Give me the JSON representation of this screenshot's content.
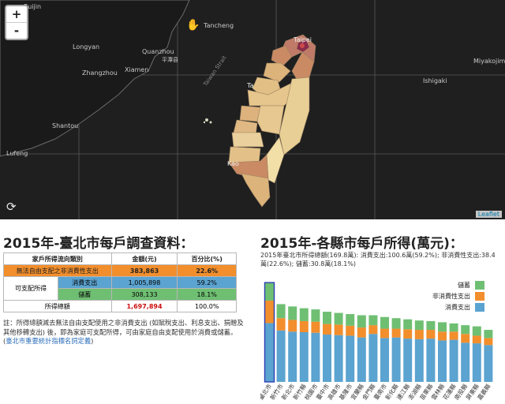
{
  "map": {
    "labels": {
      "ruijin": "Ruijin",
      "longyan": "Longyan",
      "quanzhou": "Quanzhou",
      "tancheng": "Tancheng",
      "pingtan": "平潭县",
      "xiamen": "Xiamen",
      "zhangzhou": "Zhangzhou",
      "shantou": "Shantou",
      "lufeng": "Lufeng",
      "taiwan_strait": "Taiwan Strait",
      "taipei": "Taipei",
      "taichung": "Ta",
      "kaohsiung": "Kao",
      "miyakojima": "Miyakojima",
      "ishigaki": "Ishigaki"
    },
    "zoom_in": "+",
    "zoom_out": "-",
    "attribution": "Leaflet",
    "colors": {
      "light": "#f2dfa8",
      "mid": "#dcb37a",
      "dark": "#c98a64",
      "taipei": "#8b2a4a"
    }
  },
  "left": {
    "title": "2015年-臺北市每戶調查資料：",
    "table": {
      "headers": [
        "家戶所得流向類別",
        "金額(元)",
        "百分比(%)"
      ],
      "row_nonconsume": {
        "label": "無法自由支配之非消費性支出",
        "amount": "383,863",
        "pct": "22.6%"
      },
      "disposable_label": "可支配所得",
      "row_consume": {
        "label": "消費支出",
        "amount": "1,005,898",
        "pct": "59.2%"
      },
      "row_saving": {
        "label": "儲蓄",
        "amount": "308,133",
        "pct": "18.1%"
      },
      "row_total": {
        "label": "所得總額",
        "amount": "1,697,894",
        "pct": "100.0%"
      }
    },
    "note": "註：所得總額減去無法自由支配使用之非消費支出 (如賦稅支出、利息支出、捐贈及其他移轉支出) 後，即為家庭可支配所得，可由家庭自由支配使用於消費或儲蓄。(",
    "note_link": "臺北市重要統計指標名詞定義",
    "note_end": ")"
  },
  "right": {
    "title": "2015年-各縣市每戶所得(萬元)：",
    "subtitle": "2015年臺北市所得總額(169.8萬): 消費支出:100.6萬(59.2%); 非消費性支出:38.4萬(22.6%); 儲蓄:30.8萬(18.1%)"
  },
  "chart_data": {
    "type": "bar",
    "stacked": true,
    "title": "2015年-各縣市每戶所得(萬元)",
    "categories": [
      "臺北市",
      "新竹市",
      "新北市",
      "新竹縣",
      "桃園市",
      "臺中市",
      "高雄市",
      "基隆市",
      "宜蘭縣",
      "金門縣",
      "臺南市",
      "彰化縣",
      "連江縣",
      "澎湖縣",
      "苗栗縣",
      "雲林縣",
      "花蓮縣",
      "南投縣",
      "屏東縣",
      "嘉義縣"
    ],
    "series": [
      {
        "name": "消費支出",
        "color": "#5ba3d0",
        "values": [
          100.6,
          88,
          86,
          85,
          84,
          81,
          80,
          79,
          76,
          82,
          75,
          76,
          74,
          73,
          74,
          71,
          72,
          67,
          66,
          63
        ]
      },
      {
        "name": "非消費性支出",
        "color": "#f28e2c",
        "values": [
          38.4,
          21,
          20,
          19,
          19,
          18,
          18,
          17,
          17,
          15,
          16,
          15,
          16,
          16,
          15,
          15,
          14,
          15,
          13,
          12
        ]
      },
      {
        "name": "儲蓄",
        "color": "#6fbf73",
        "values": [
          30.8,
          24,
          23,
          22,
          21,
          21,
          20,
          20,
          21,
          17,
          20,
          18,
          17,
          16,
          15,
          16,
          14,
          15,
          16,
          14
        ]
      }
    ],
    "legend": [
      "儲蓄",
      "非消費性支出",
      "消費支出"
    ],
    "legend_position": "top-right",
    "ylim": [
      0,
      170
    ]
  }
}
